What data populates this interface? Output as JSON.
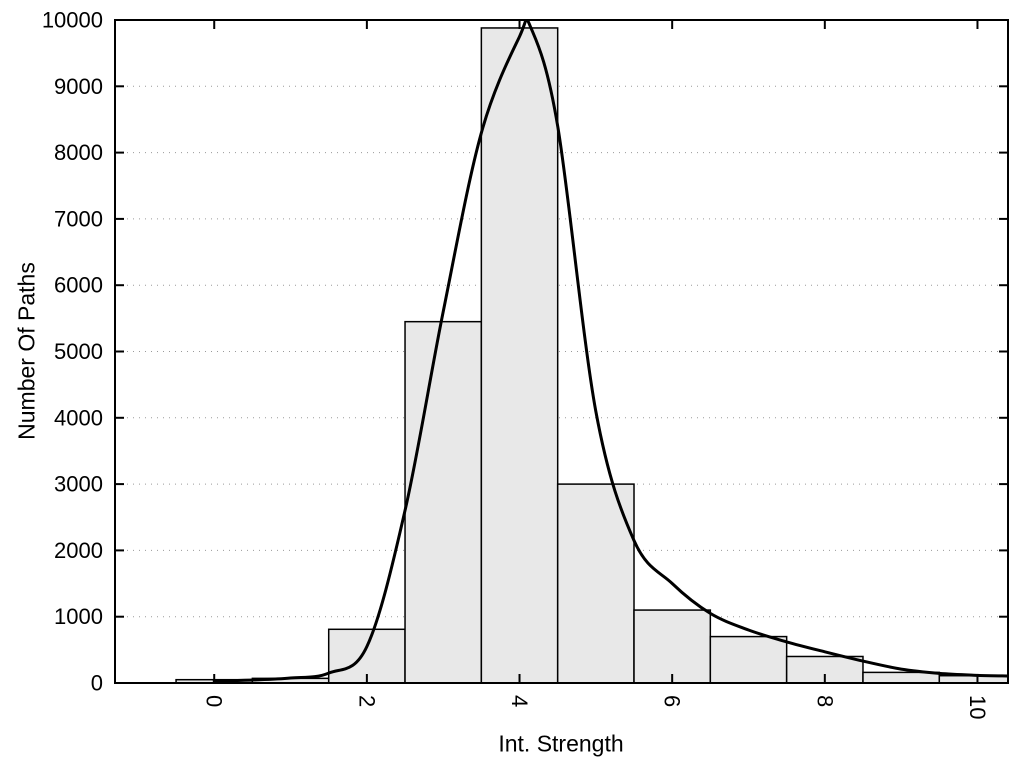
{
  "chart_data": {
    "type": "bar",
    "title": "",
    "xlabel": "Int. Strength",
    "ylabel": "Number Of Paths",
    "xlim": [
      -1.3,
      10.4
    ],
    "ylim": [
      0,
      10000
    ],
    "x_ticks": [
      "0",
      "2",
      "4",
      "6",
      "8",
      "10"
    ],
    "x_tick_values": [
      0,
      2,
      4,
      6,
      8,
      10
    ],
    "y_ticks": [
      "0",
      "1000",
      "2000",
      "3000",
      "4000",
      "5000",
      "6000",
      "7000",
      "8000",
      "9000",
      "10000"
    ],
    "y_tick_values": [
      0,
      1000,
      2000,
      3000,
      4000,
      5000,
      6000,
      7000,
      8000,
      9000,
      10000
    ],
    "grid": "horizontal-dotted",
    "legend": "none",
    "bars": {
      "centers": [
        0,
        1,
        2,
        3,
        4,
        5,
        6,
        7,
        8,
        9,
        10
      ],
      "bin_width": 1,
      "values": [
        50,
        70,
        810,
        5450,
        9880,
        3000,
        1100,
        700,
        400,
        160,
        110
      ],
      "fill": "#e8e8e8",
      "stroke": "#000000"
    },
    "curve": {
      "name": "smoothed-fit",
      "color": "#000000",
      "points": [
        [
          0,
          30
        ],
        [
          0.5,
          45
        ],
        [
          1,
          75
        ],
        [
          1.5,
          150
        ],
        [
          2,
          550
        ],
        [
          2.5,
          2600
        ],
        [
          3,
          5600
        ],
        [
          3.5,
          8300
        ],
        [
          4,
          9750
        ],
        [
          4.15,
          9880
        ],
        [
          4.5,
          8400
        ],
        [
          5,
          4100
        ],
        [
          5.5,
          2150
        ],
        [
          6,
          1500
        ],
        [
          6.5,
          1050
        ],
        [
          7,
          800
        ],
        [
          7.5,
          620
        ],
        [
          8,
          470
        ],
        [
          8.5,
          330
        ],
        [
          9,
          210
        ],
        [
          9.5,
          145
        ],
        [
          10,
          115
        ],
        [
          10.4,
          105
        ]
      ]
    },
    "colors": {
      "grid": "#9a9a9a",
      "frame": "#000000",
      "background": "#ffffff"
    }
  }
}
